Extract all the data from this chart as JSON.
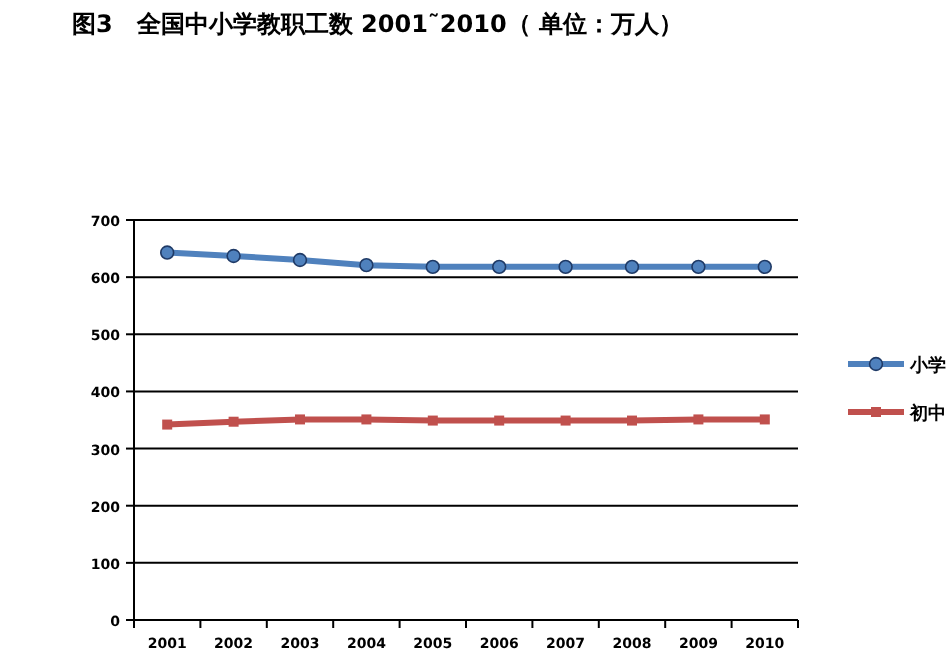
{
  "chart_data": {
    "type": "line",
    "title": "图3　全国中小学教职工数 2001˜2010（ 单位：万人）",
    "categories": [
      "2001",
      "2002",
      "2003",
      "2004",
      "2005",
      "2006",
      "2007",
      "2008",
      "2009",
      "2010"
    ],
    "series": [
      {
        "name": "小学",
        "color": "#4f81bd",
        "marker": "circle",
        "values": [
          643,
          637,
          630,
          621,
          618,
          618,
          618,
          618,
          618,
          618
        ]
      },
      {
        "name": "初中",
        "color": "#c0504d",
        "marker": "square",
        "values": [
          342,
          347,
          351,
          351,
          349,
          349,
          349,
          349,
          351,
          351
        ]
      }
    ],
    "ylim": [
      0,
      700
    ],
    "yticks": [
      0,
      100,
      200,
      300,
      400,
      500,
      600,
      700
    ],
    "grid": "y",
    "legend": "right"
  }
}
